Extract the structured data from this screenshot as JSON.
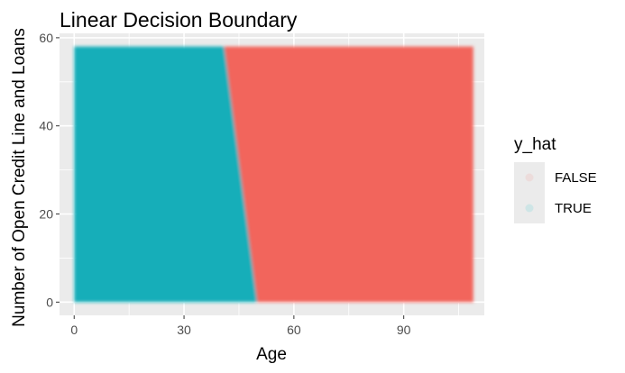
{
  "chart_data": {
    "type": "area",
    "title": "Linear Decision Boundary",
    "xlabel": "Age",
    "ylabel": "Number of Open Credit Line and Loans",
    "xlim": [
      -4,
      112
    ],
    "ylim": [
      -3,
      61
    ],
    "x_ticks": [
      0,
      30,
      60,
      90
    ],
    "y_ticks": [
      0,
      20,
      40,
      60
    ],
    "grid": true,
    "legend_position": "right",
    "data_extent": {
      "x": [
        0,
        109
      ],
      "y": [
        0,
        58
      ]
    },
    "boundary": [
      {
        "x": 50,
        "y": 0
      },
      {
        "x": 41,
        "y": 58
      }
    ],
    "legend": {
      "title": "y_hat",
      "entries": [
        {
          "label": "FALSE",
          "color": "#F8766D"
        },
        {
          "label": "TRUE",
          "color": "#00BFC4"
        }
      ]
    },
    "regions": [
      {
        "label": "TRUE",
        "side": "left",
        "color": "#17AEB9"
      },
      {
        "label": "FALSE",
        "side": "right",
        "color": "#F2655C"
      }
    ],
    "colors": {
      "panel_background": "#EBEBEB",
      "gridline": "#FFFFFF",
      "legend_key_background": "#EBEBEB"
    }
  }
}
